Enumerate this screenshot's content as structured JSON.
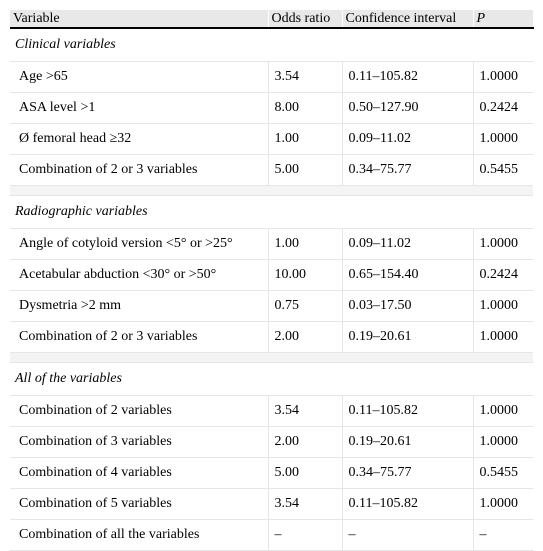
{
  "header": {
    "variable": "Variable",
    "odds_ratio": "Odds ratio",
    "confidence_interval": "Confidence interval",
    "p": "P"
  },
  "sections": [
    {
      "title": "Clinical variables",
      "rows": [
        {
          "variable": "Age >65",
          "odds": "3.54",
          "ci": "0.11–105.82",
          "p": "1.0000"
        },
        {
          "variable": "ASA level >1",
          "odds": "8.00",
          "ci": "0.50–127.90",
          "p": "0.2424"
        },
        {
          "variable": "Ø femoral head ≥32",
          "odds": "1.00",
          "ci": "0.09–11.02",
          "p": "1.0000"
        },
        {
          "variable": "Combination of 2 or 3 variables",
          "odds": "5.00",
          "ci": "0.34–75.77",
          "p": "0.5455"
        }
      ]
    },
    {
      "title": "Radiographic variables",
      "rows": [
        {
          "variable": "Angle of cotyloid version <5° or >25°",
          "odds": "1.00",
          "ci": "0.09–11.02",
          "p": "1.0000"
        },
        {
          "variable": "Acetabular abduction <30° or >50°",
          "odds": "10.00",
          "ci": "0.65–154.40",
          "p": "0.2424"
        },
        {
          "variable": "Dysmetria >2 mm",
          "odds": "0.75",
          "ci": "0.03–17.50",
          "p": "1.0000"
        },
        {
          "variable": "Combination of 2 or 3 variables",
          "odds": "2.00",
          "ci": "0.19–20.61",
          "p": "1.0000"
        }
      ]
    },
    {
      "title": "All of the variables",
      "rows": [
        {
          "variable": "Combination of 2 variables",
          "odds": "3.54",
          "ci": "0.11–105.82",
          "p": "1.0000"
        },
        {
          "variable": "Combination of 3 variables",
          "odds": "2.00",
          "ci": "0.19–20.61",
          "p": "1.0000"
        },
        {
          "variable": "Combination of 4 variables",
          "odds": "5.00",
          "ci": "0.34–75.77",
          "p": "0.5455"
        },
        {
          "variable": "Combination of 5 variables",
          "odds": "3.54",
          "ci": "0.11–105.82",
          "p": "1.0000"
        },
        {
          "variable": "Combination of all the variables",
          "odds": "–",
          "ci": "–",
          "p": "–"
        }
      ]
    }
  ]
}
